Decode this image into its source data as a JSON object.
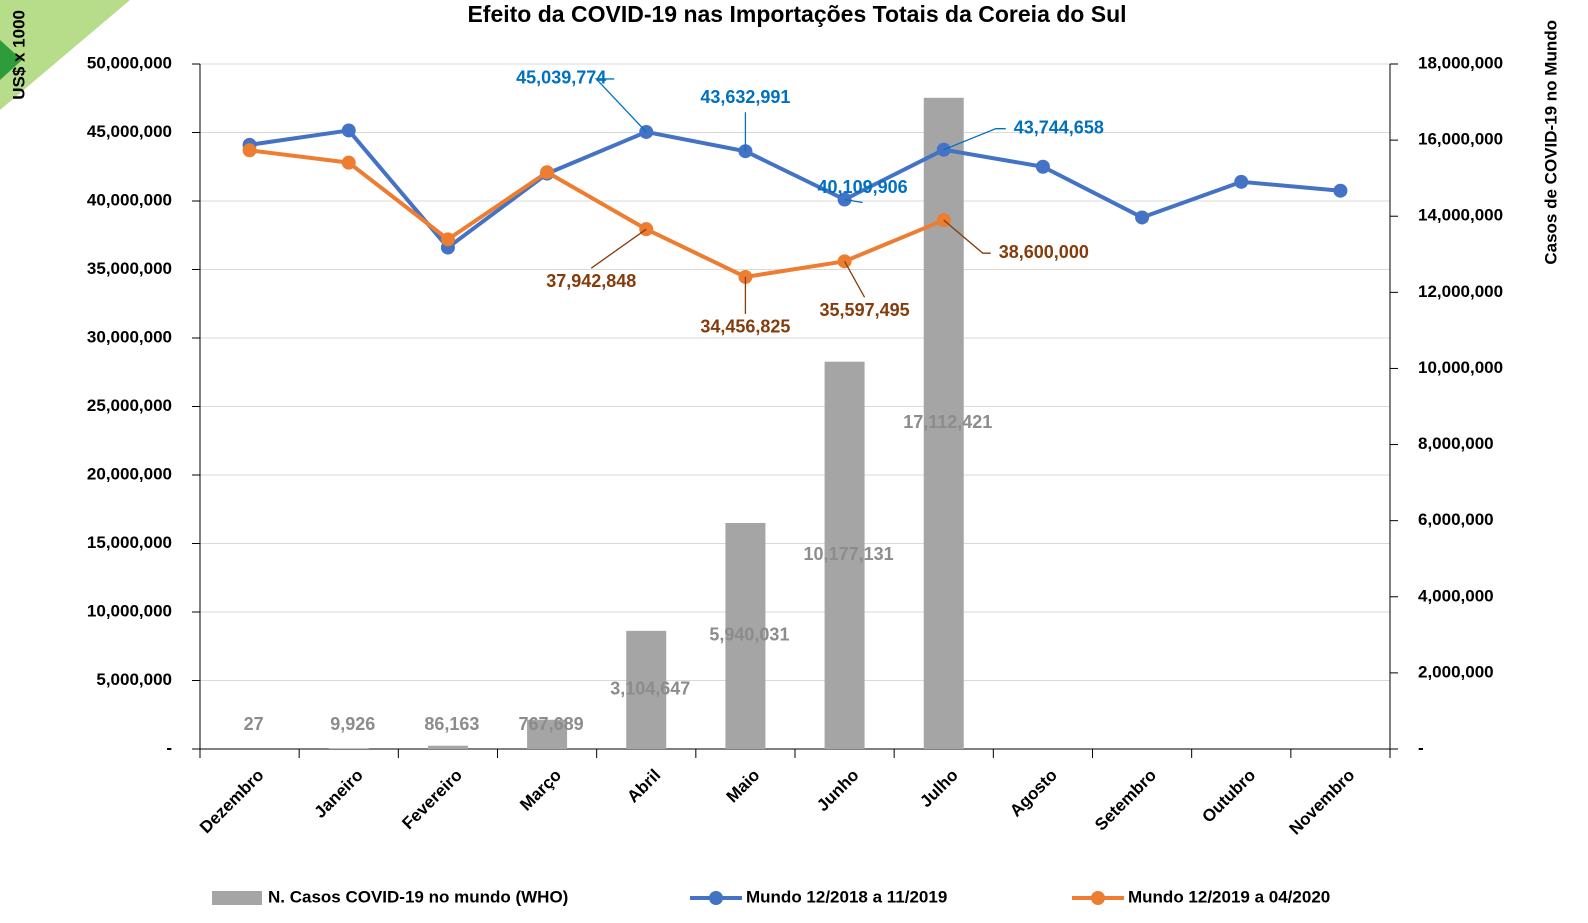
{
  "chart_data": {
    "type": "bar",
    "title": "Efeito da COVID-19 nas Importações Totais da Coreia do Sul",
    "ylabel": "US$ x 1000",
    "y2label": "Casos de COVID-19 no Mundo",
    "categories": [
      "Dezembro",
      "Janeiro",
      "Fevereiro",
      "Março",
      "Abril",
      "Maio",
      "Junho",
      "Julho",
      "Agosto",
      "Setembro",
      "Outubro",
      "Novembro"
    ],
    "ylim": [
      0,
      50000000
    ],
    "yticks": [
      {
        "value": 0,
        "label": "-"
      },
      {
        "value": 5000000,
        "label": "5,000,000"
      },
      {
        "value": 10000000,
        "label": "10,000,000"
      },
      {
        "value": 15000000,
        "label": "15,000,000"
      },
      {
        "value": 20000000,
        "label": "20,000,000"
      },
      {
        "value": 25000000,
        "label": "25,000,000"
      },
      {
        "value": 30000000,
        "label": "30,000,000"
      },
      {
        "value": 35000000,
        "label": "35,000,000"
      },
      {
        "value": 40000000,
        "label": "40,000,000"
      },
      {
        "value": 45000000,
        "label": "45,000,000"
      },
      {
        "value": 50000000,
        "label": "50,000,000"
      }
    ],
    "y2lim": [
      0,
      18000000
    ],
    "y2ticks": [
      {
        "value": 0,
        "label": "-"
      },
      {
        "value": 2000000,
        "label": "2,000,000"
      },
      {
        "value": 4000000,
        "label": "4,000,000"
      },
      {
        "value": 6000000,
        "label": "6,000,000"
      },
      {
        "value": 8000000,
        "label": "8,000,000"
      },
      {
        "value": 10000000,
        "label": "10,000,000"
      },
      {
        "value": 12000000,
        "label": "12,000,000"
      },
      {
        "value": 14000000,
        "label": "14,000,000"
      },
      {
        "value": 16000000,
        "label": "16,000,000"
      },
      {
        "value": 18000000,
        "label": "18,000,000"
      }
    ],
    "grid": true,
    "legend": "bottom",
    "series": [
      {
        "name": "N. Casos COVID-19 no mundo (WHO)",
        "type": "bar",
        "axis": "y2",
        "color": "#a5a5a5",
        "label_color": "#8c8c8c",
        "values": [
          27,
          9926,
          86163,
          767689,
          3104647,
          5940031,
          10177131,
          17112421,
          null,
          null,
          null,
          null
        ],
        "value_labels": [
          "27",
          "9,926",
          "86,163",
          "767,689",
          "3,104,647",
          "5,940,031",
          "10,177,131",
          "17,112,421",
          null,
          null,
          null,
          null
        ]
      },
      {
        "name": "Mundo 12/2018 a 11/2019",
        "type": "line",
        "color": "#4472c4",
        "label_color": "#0070c0",
        "values": [
          44100000,
          45150000,
          36600000,
          42000000,
          45039774,
          43632991,
          40109906,
          43744658,
          42500000,
          38800000,
          41400000,
          40750000
        ],
        "value_labels": [
          null,
          null,
          null,
          null,
          "45,039,774",
          "43,632,991",
          "40,109,906",
          "43,744,658",
          null,
          null,
          null,
          null
        ]
      },
      {
        "name": "Mundo 12/2019 a 04/2020",
        "type": "line",
        "color": "#ed7d31",
        "label_color": "#843c0c",
        "values": [
          43700000,
          42800000,
          37200000,
          42100000,
          37942848,
          34456825,
          35597495,
          38600000,
          null,
          null,
          null,
          null
        ],
        "value_labels": [
          null,
          null,
          null,
          null,
          "37,942,848",
          "34,456,825",
          "35,597,495",
          "38,600,000",
          null,
          null,
          null,
          null
        ]
      }
    ]
  }
}
